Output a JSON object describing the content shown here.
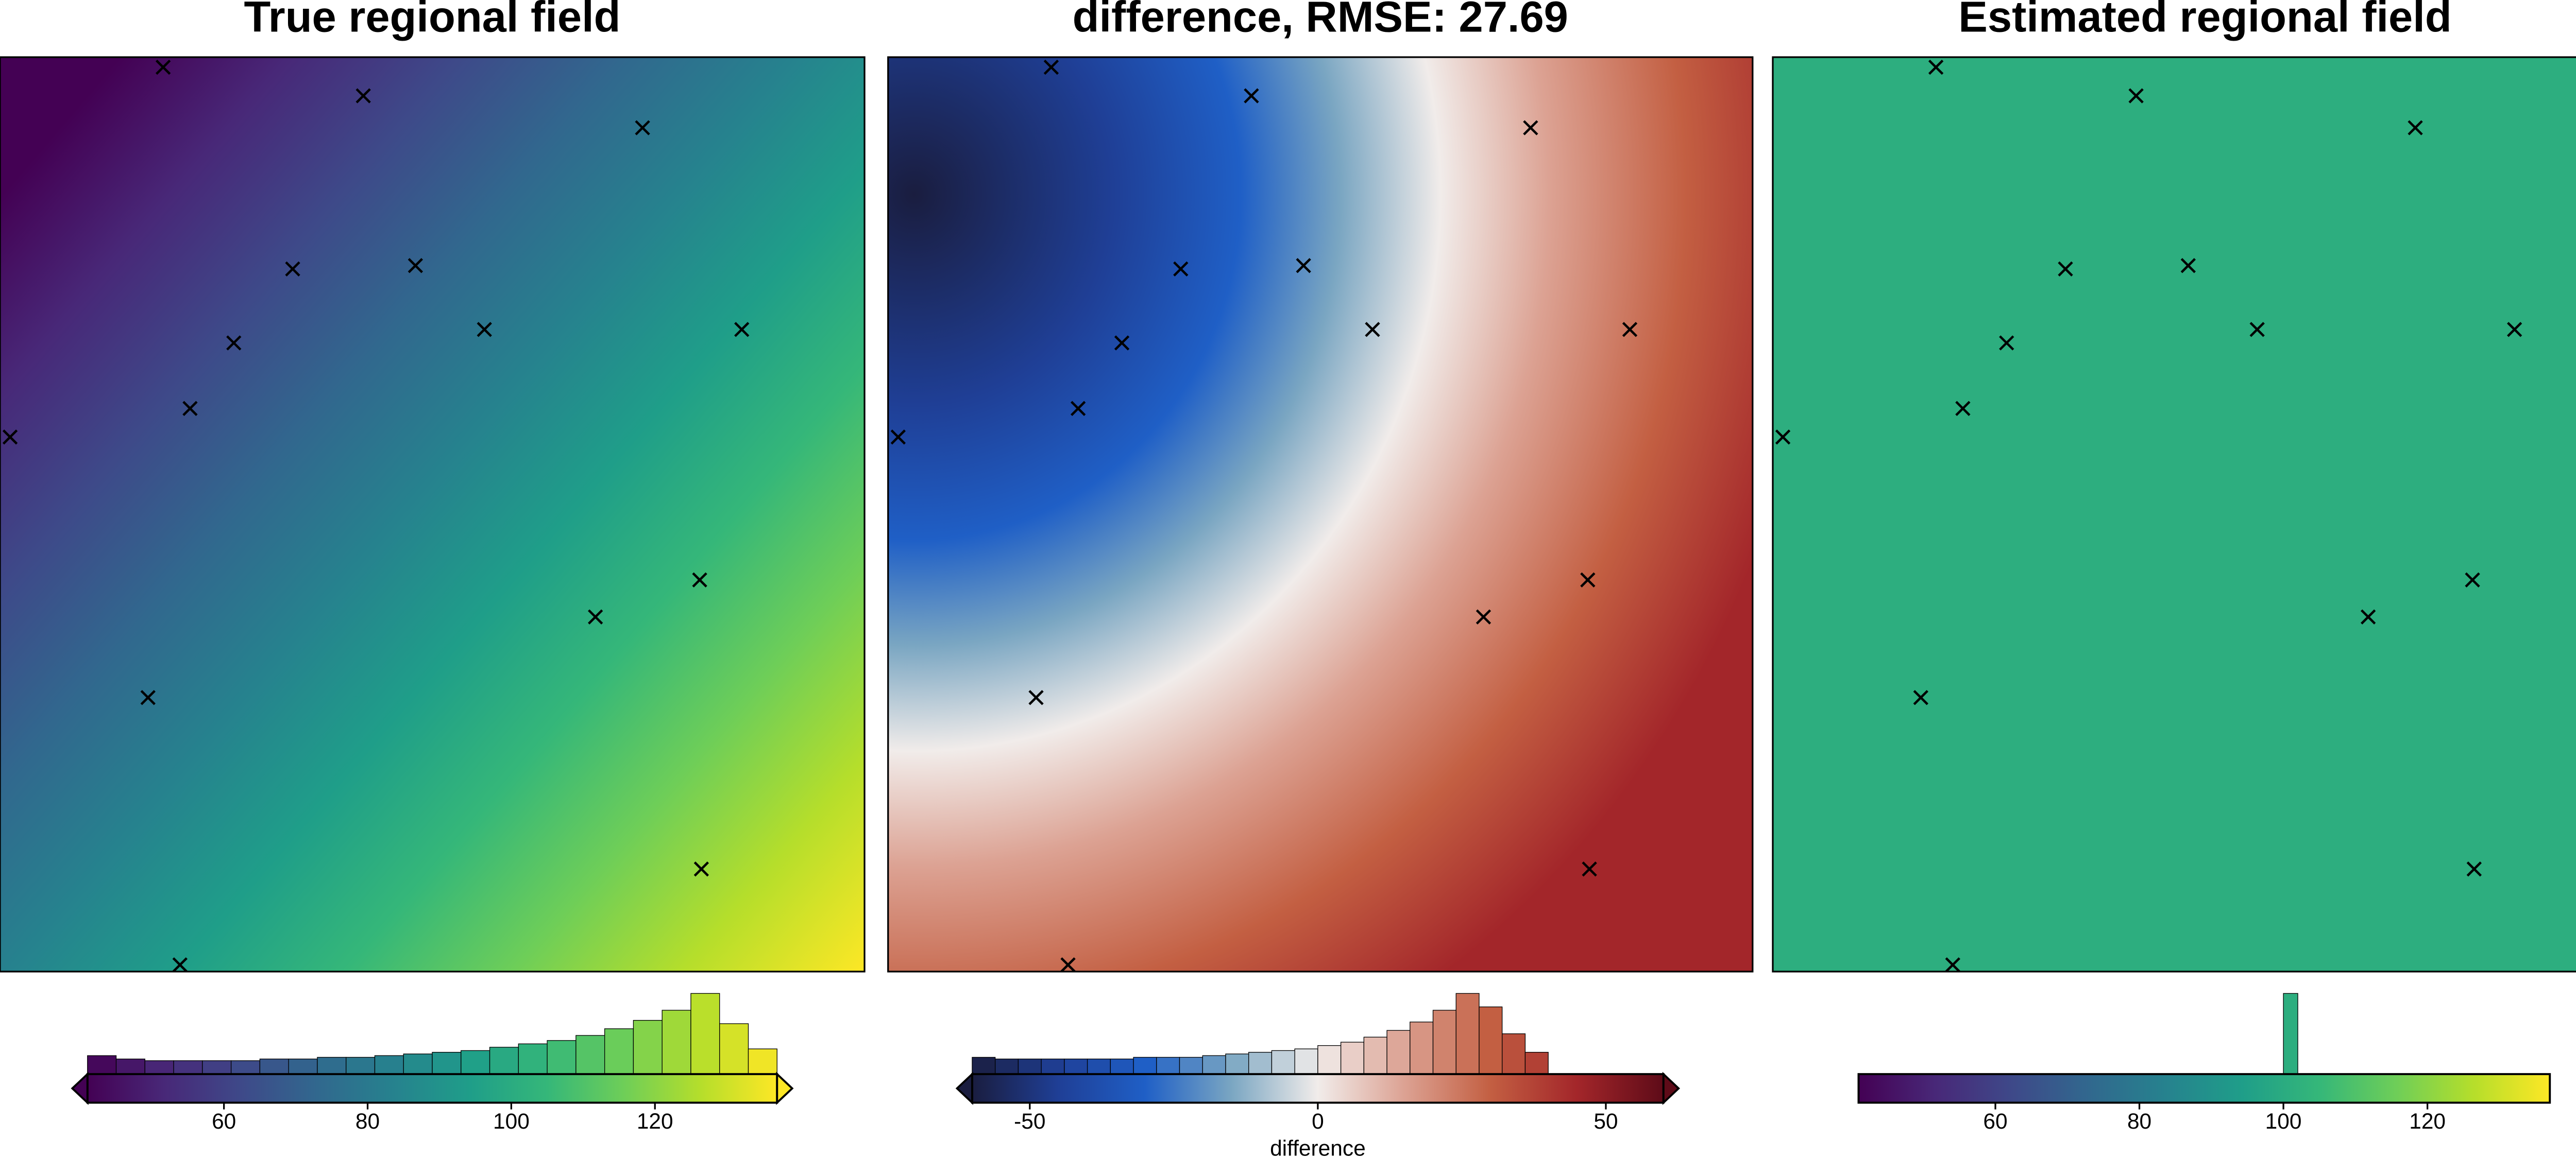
{
  "chart_data": [
    {
      "type": "heatmap",
      "title": "True regional field",
      "colormap": "viridis",
      "fill": "gradient-linear",
      "colorbar": {
        "lim": [
          41,
          137
        ],
        "ticks": [
          60,
          80,
          100,
          120
        ],
        "extend": true
      },
      "histogram": {
        "bins": [
          41,
          45,
          49,
          53,
          57,
          61,
          65,
          69,
          73,
          77,
          81,
          85,
          89,
          93,
          97,
          101,
          105,
          109,
          113,
          117,
          121,
          125,
          129,
          133,
          137
        ],
        "counts": [
          11,
          9,
          8,
          8,
          8,
          8,
          9,
          9,
          10,
          10,
          11,
          12,
          13,
          14,
          16,
          18,
          20,
          23,
          27,
          32,
          38,
          48,
          30,
          15
        ]
      }
    },
    {
      "type": "heatmap",
      "title": "difference, RMSE: 27.69",
      "colormap": "balance",
      "fill": "gradient-radial",
      "colorbar": {
        "lim": [
          -60,
          60
        ],
        "ticks": [
          -50,
          0,
          50
        ],
        "extend": true,
        "label": "difference"
      },
      "histogram": {
        "bins": [
          -60,
          -56,
          -52,
          -48,
          -44,
          -40,
          -36,
          -32,
          -28,
          -24,
          -20,
          -16,
          -12,
          -8,
          -4,
          0,
          4,
          8,
          12,
          16,
          20,
          24,
          28,
          32,
          36,
          40
        ],
        "counts": [
          10,
          9,
          9,
          9,
          9,
          9,
          9,
          10,
          10,
          10,
          11,
          12,
          13,
          14,
          15,
          17,
          19,
          22,
          26,
          31,
          38,
          48,
          40,
          24,
          13
        ]
      }
    },
    {
      "type": "heatmap",
      "title": "Estimated regional field",
      "colormap": "viridis",
      "fill": "uniform",
      "colorbar": {
        "lim": [
          41,
          137
        ],
        "ticks": [
          60,
          80,
          100,
          120
        ],
        "extend": false
      },
      "histogram": {
        "bins": [
          100,
          102
        ],
        "counts": [
          48
        ]
      }
    }
  ]
}
